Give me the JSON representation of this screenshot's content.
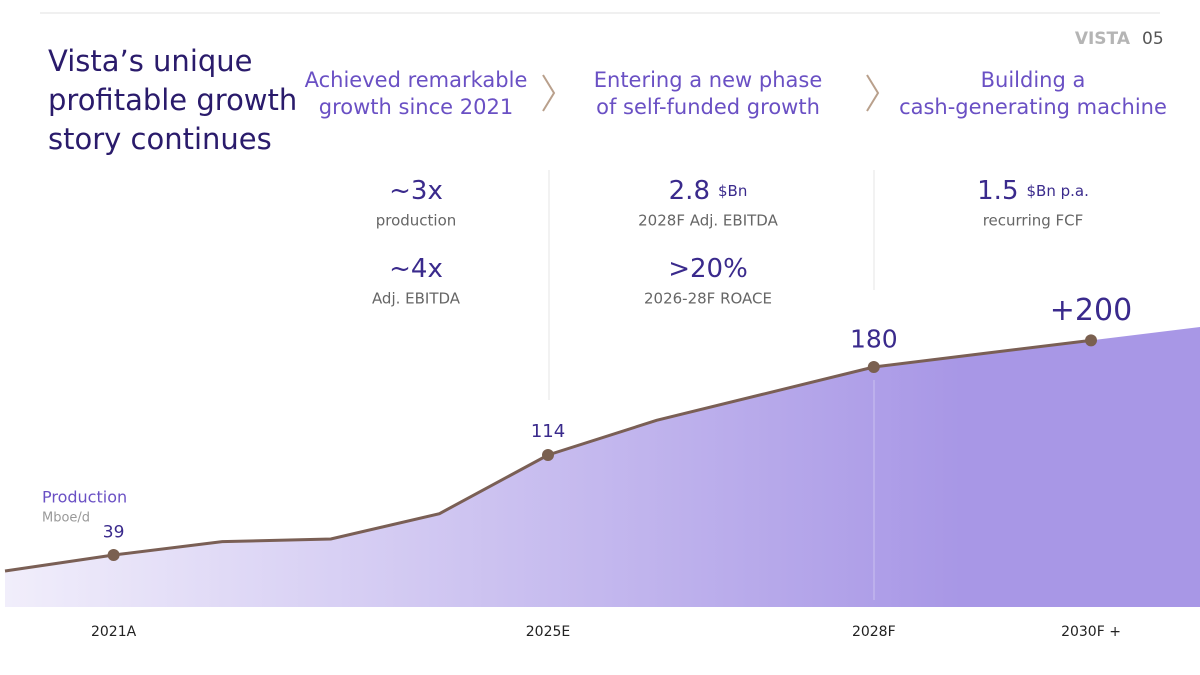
{
  "chart_data": {
    "type": "line",
    "title": [
      "Vista’s unique",
      "profitable growth",
      "story continues"
    ],
    "brand": "VISTA",
    "page_number": "05",
    "y_label": "Production",
    "y_unit": "Mboe/d",
    "categories": [
      null,
      "2021A",
      null,
      null,
      null,
      "2025E",
      null,
      null,
      "2028F",
      null,
      "2030F +"
    ],
    "values": [
      27,
      39,
      49,
      51,
      70,
      114,
      140,
      160,
      180,
      190,
      200
    ],
    "value_labels": [
      null,
      null,
      null,
      null,
      null,
      null,
      null,
      null,
      null,
      null,
      "+200"
    ],
    "ylim": [
      0,
      225
    ],
    "color": "#7a5f55",
    "area_color": [
      "#f1eefb",
      "#a897e6"
    ],
    "phases": [
      {
        "heading": [
          "Achieved remarkable",
          "growth since 2021"
        ],
        "metrics": [
          {
            "value": "~3x",
            "label": "production"
          },
          {
            "value": "~4x",
            "label": "Adj. EBITDA"
          }
        ]
      },
      {
        "heading": [
          "Entering a new phase",
          "of self-funded growth"
        ],
        "metrics": [
          {
            "value": 2.8,
            "unit": "$Bn",
            "label": "2028F Adj. EBITDA"
          },
          {
            "value": ">20%",
            "label": "2026-28F ROACE"
          }
        ]
      },
      {
        "heading": [
          "Building a",
          "cash-generating machine"
        ],
        "metrics": [
          {
            "value": 1.5,
            "unit": "$Bn p.a.",
            "label": "recurring FCF"
          }
        ]
      }
    ]
  }
}
